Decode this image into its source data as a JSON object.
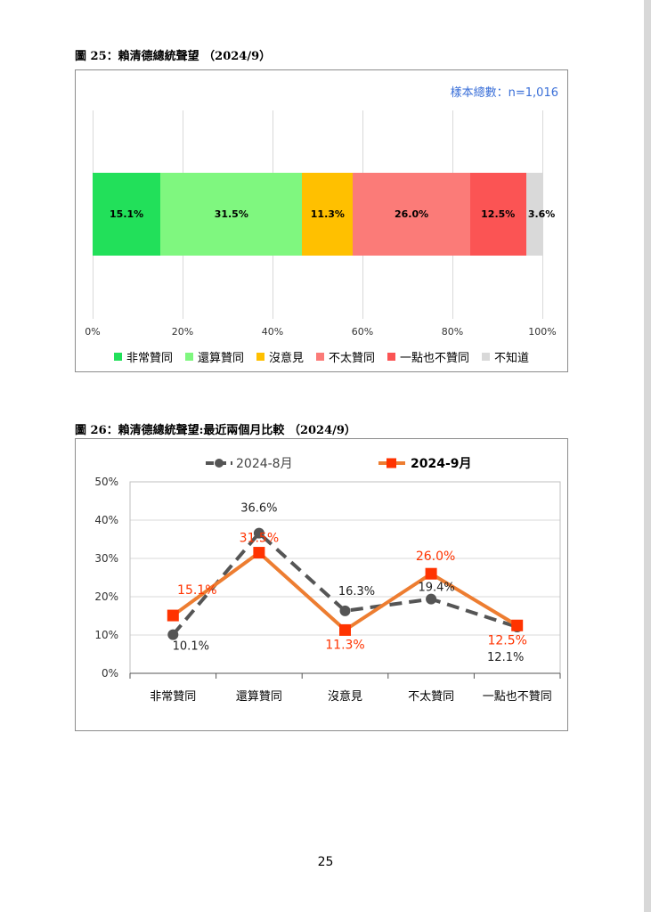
{
  "page_number": "25",
  "figure25": {
    "title": "圖 25：賴清德總統聲望 （2024/9）",
    "sample": "樣本總數：n=1,016"
  },
  "figure26": {
    "title": "圖 26：賴清德總統聲望:最近兩個月比較 （2024/9）"
  },
  "chart_data": [
    {
      "type": "bar",
      "orientation": "horizontal-stacked",
      "categories": [
        "非常贊同",
        "還算贊同",
        "沒意見",
        "不太贊同",
        "一點也不贊同",
        "不知道"
      ],
      "values": [
        15.1,
        31.5,
        11.3,
        26.0,
        12.5,
        3.6
      ],
      "value_labels": [
        "15.1%",
        "31.5%",
        "11.3%",
        "26.0%",
        "12.5%",
        "3.6%"
      ],
      "colors": [
        "#22e05a",
        "#7ff77f",
        "#ffc000",
        "#fb7b78",
        "#fb5454",
        "#d9d9d9"
      ],
      "xlim": [
        0,
        100
      ],
      "xticks": [
        "0%",
        "20%",
        "40%",
        "60%",
        "80%",
        "100%"
      ],
      "grid": true,
      "legend": "bottom"
    },
    {
      "type": "line",
      "categories": [
        "非常贊同",
        "還算贊同",
        "沒意見",
        "不太贊同",
        "一點也不贊同"
      ],
      "ylim": [
        0,
        50
      ],
      "yticks": [
        "0%",
        "10%",
        "20%",
        "30%",
        "40%",
        "50%"
      ],
      "grid": true,
      "legend": "top",
      "series": [
        {
          "name": "2024-8月",
          "values": [
            10.1,
            36.6,
            16.3,
            19.4,
            12.1
          ],
          "labels": [
            "10.1%",
            "36.6%",
            "16.3%",
            "19.4%",
            "12.1%"
          ],
          "color": "#555555",
          "style": "dashed",
          "marker": "circle"
        },
        {
          "name": "2024-9月",
          "values": [
            15.1,
            31.5,
            11.3,
            26.0,
            12.5
          ],
          "labels": [
            "15.1%",
            "31.5%",
            "11.3%",
            "26.0%",
            "12.5%"
          ],
          "color": "#ed7d31",
          "label_color": "#ff3300",
          "marker_color": "#ff3300",
          "style": "solid",
          "marker": "square"
        }
      ]
    }
  ]
}
